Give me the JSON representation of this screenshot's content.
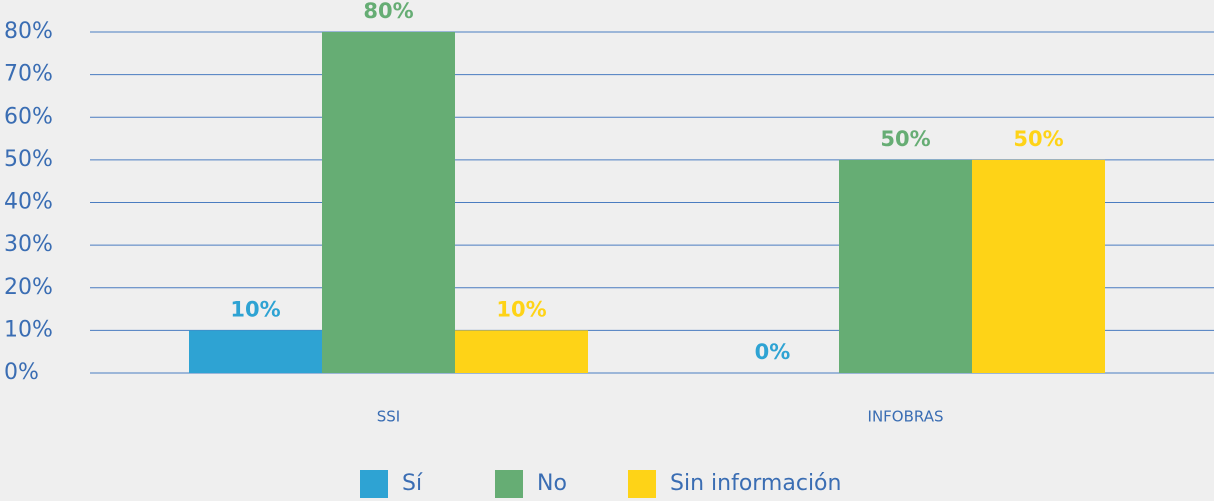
{
  "chart_data": {
    "type": "bar",
    "categories": [
      "SSI",
      "INFOBRAS"
    ],
    "series": [
      {
        "name": "Sí",
        "color": "#2ea3d3",
        "values": [
          10,
          0
        ],
        "value_labels": [
          "10%",
          "0%"
        ]
      },
      {
        "name": "No",
        "color": "#66ad74",
        "values": [
          80,
          50
        ],
        "value_labels": [
          "80%",
          "50%"
        ]
      },
      {
        "name": "Sin información",
        "color": "#fed317",
        "values": [
          10,
          50
        ],
        "value_labels": [
          "10%",
          "50%"
        ]
      }
    ],
    "ylim": [
      0,
      80
    ],
    "yticks": [
      {
        "value": 0,
        "label": "0%"
      },
      {
        "value": 10,
        "label": "10%"
      },
      {
        "value": 20,
        "label": "20%"
      },
      {
        "value": 30,
        "label": "30%"
      },
      {
        "value": 40,
        "label": "40%"
      },
      {
        "value": 50,
        "label": "50%"
      },
      {
        "value": 60,
        "label": "60%"
      },
      {
        "value": 70,
        "label": "70%"
      },
      {
        "value": 80,
        "label": "80%"
      }
    ],
    "grid": true,
    "legend": "bottom"
  }
}
